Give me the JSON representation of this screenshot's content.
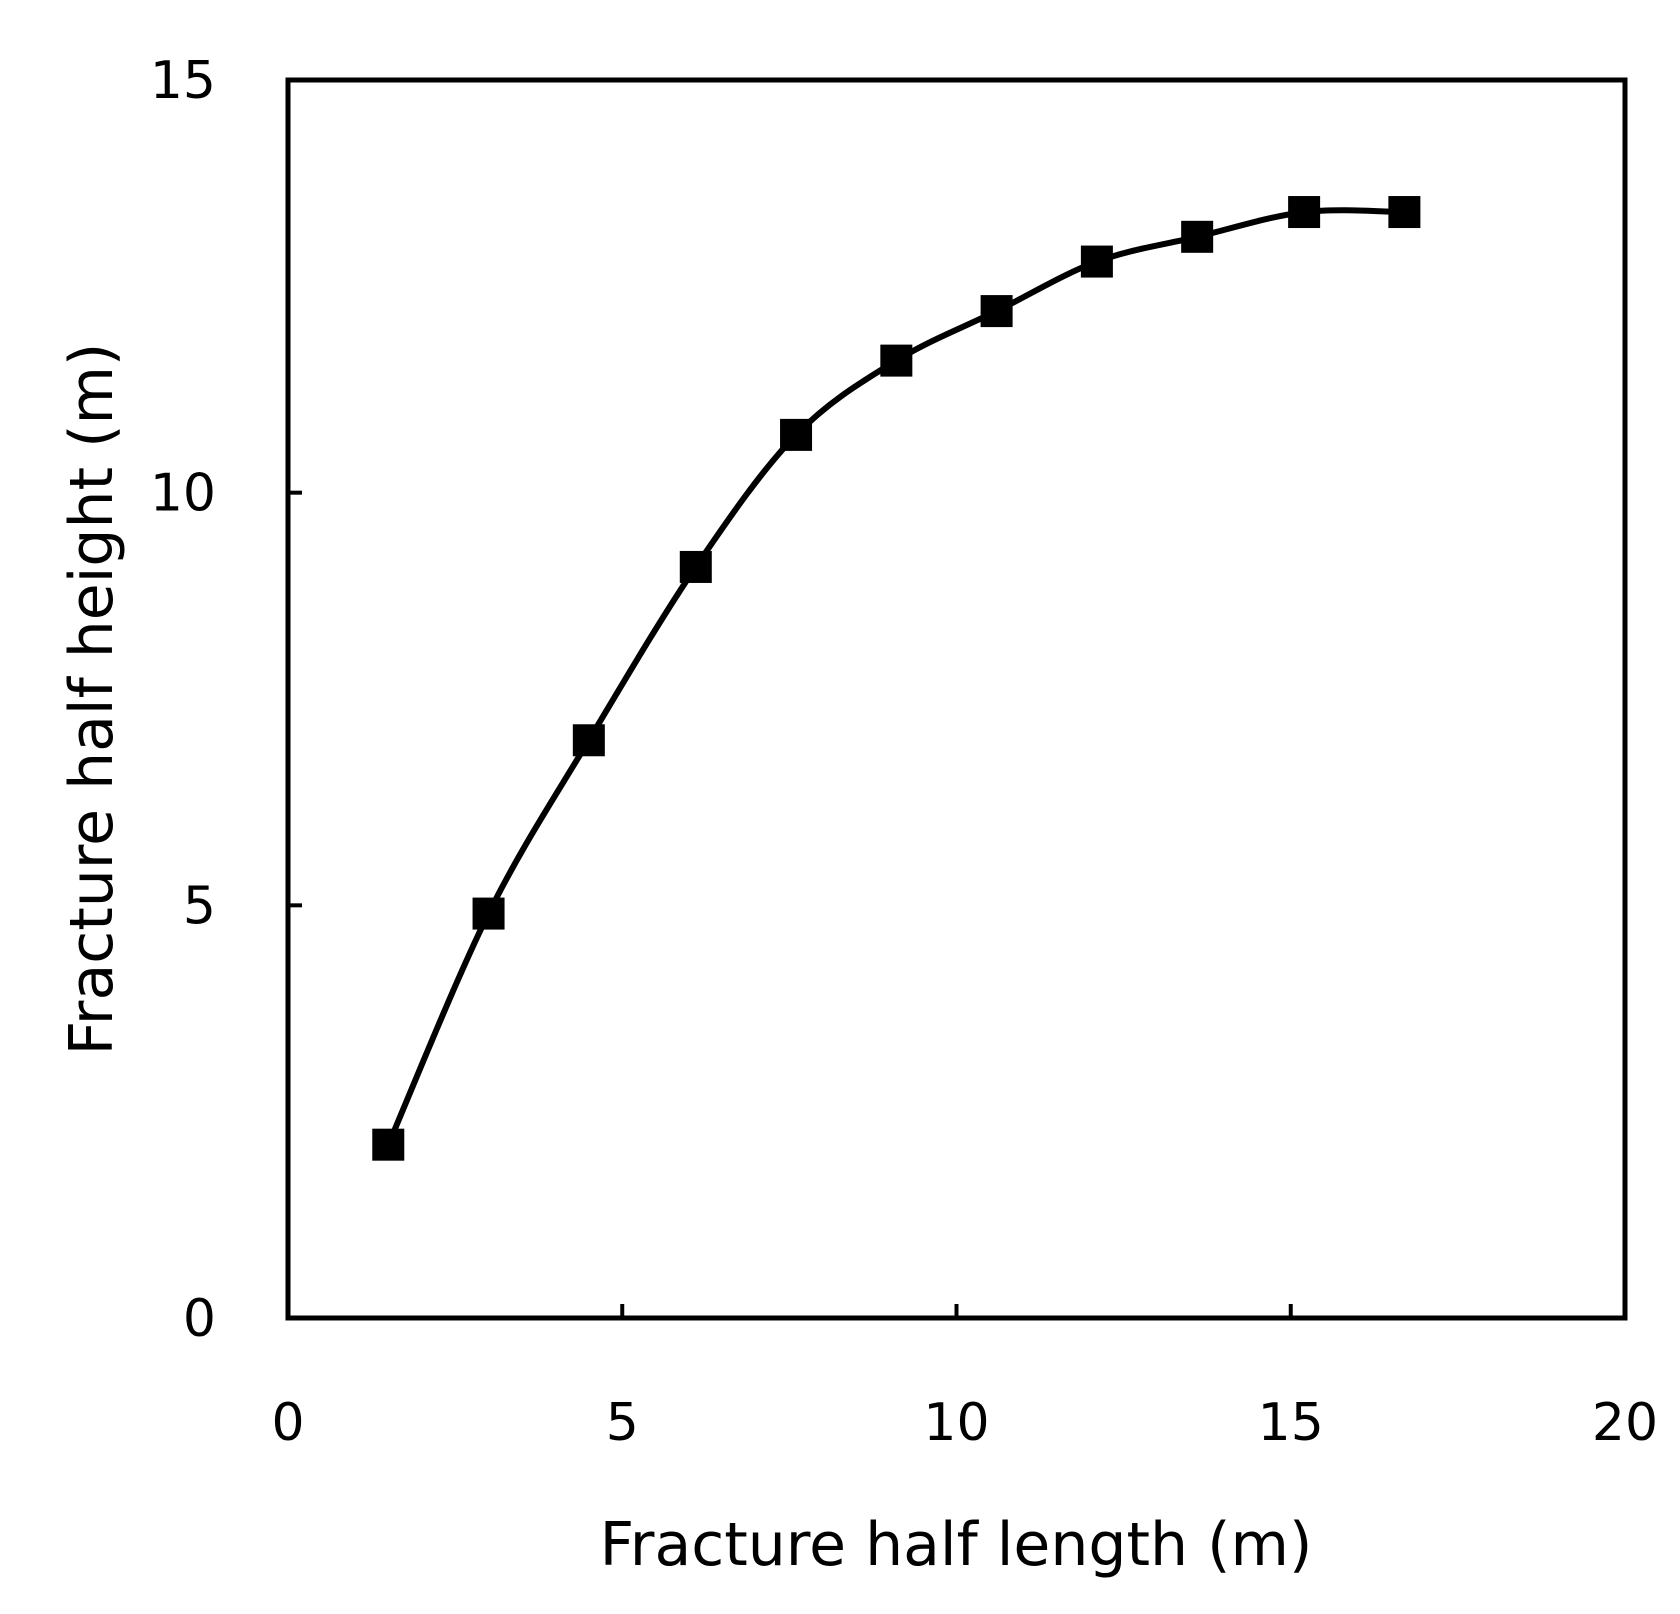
{
  "chart_data": {
    "type": "line",
    "title": "",
    "xlabel": "Fracture half length (m)",
    "ylabel": "Fracture half height (m)",
    "xlim": [
      0,
      20
    ],
    "ylim": [
      0,
      15
    ],
    "xticks": [
      "0",
      "5",
      "10",
      "15",
      "20"
    ],
    "yticks": [
      "0",
      "5",
      "10",
      "15"
    ],
    "grid": false,
    "legend": "none",
    "series": [
      {
        "marker": "square",
        "color": "#000000",
        "x": [
          1.5,
          3.0,
          4.5,
          6.1,
          7.6,
          9.1,
          10.6,
          12.1,
          13.6,
          15.2,
          16.7
        ],
        "y": [
          2.1,
          4.9,
          7.0,
          9.1,
          10.7,
          11.6,
          12.2,
          12.8,
          13.1,
          13.4,
          13.4
        ]
      }
    ]
  }
}
